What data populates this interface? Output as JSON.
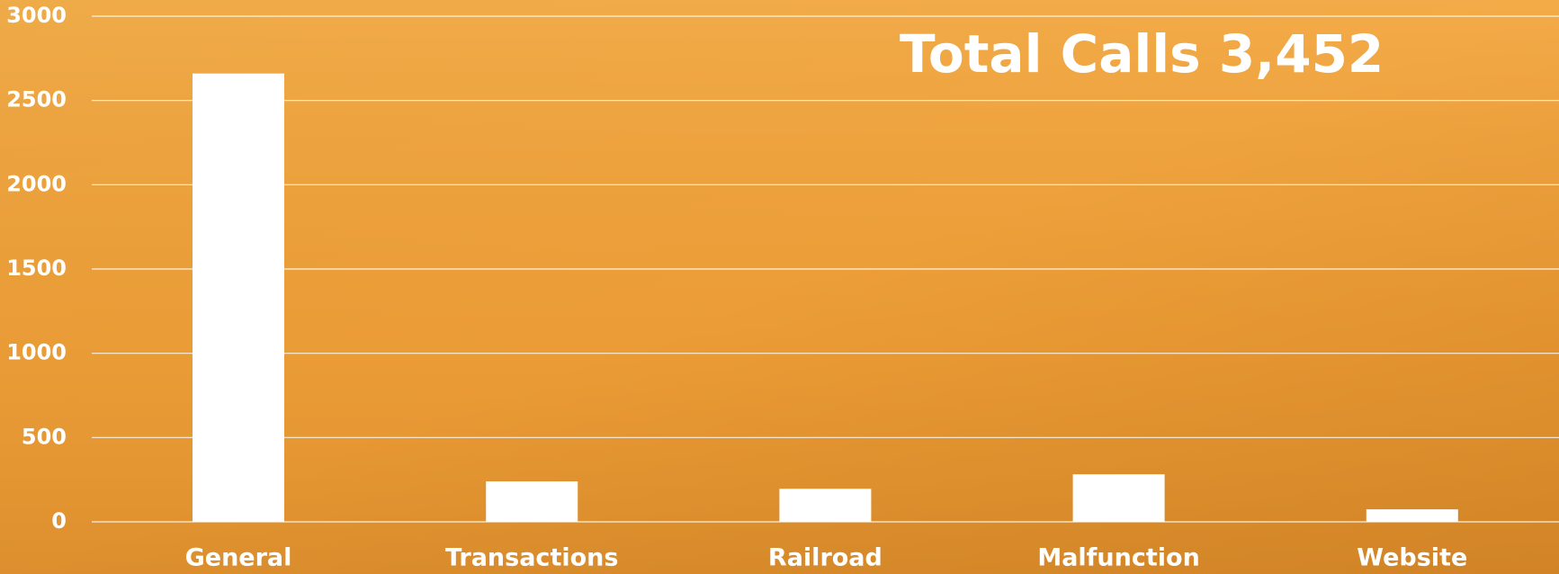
{
  "chart_data": {
    "type": "bar",
    "title": "Total Calls 3,452",
    "categories": [
      "General",
      "Transactions",
      "Railroad",
      "Malfunction",
      "Website"
    ],
    "values": [
      2660,
      240,
      196,
      282,
      74
    ],
    "color": "#ffffff",
    "ylim": [
      0,
      3000
    ],
    "yticks": [
      0,
      500,
      1000,
      1500,
      2000,
      2500,
      3000
    ],
    "grid": true
  }
}
